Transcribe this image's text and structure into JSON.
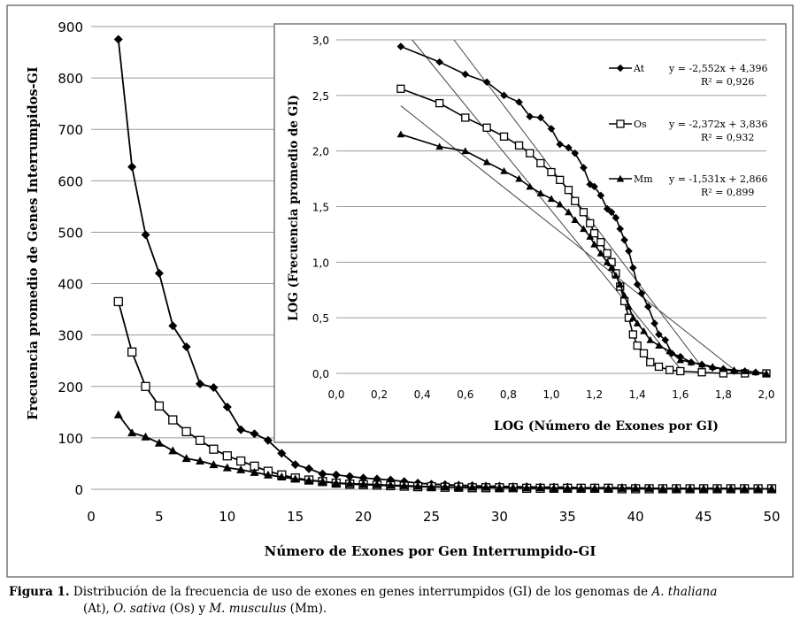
{
  "chart_data": [
    {
      "type": "line",
      "title": "",
      "xlabel": "Número de Exones por Gen Interrumpido-GI",
      "ylabel": "Frecuencia promedio de Genes Interrumpidos-GI",
      "xlim": [
        0,
        50
      ],
      "ylim": [
        0,
        900
      ],
      "xticks": [
        0,
        5,
        10,
        15,
        20,
        25,
        30,
        35,
        40,
        45,
        50
      ],
      "yticks": [
        0,
        100,
        200,
        300,
        400,
        500,
        600,
        700,
        800,
        900
      ],
      "grid": "horizontal",
      "series": [
        {
          "marker": "diamond",
          "points": [
            [
              2,
              875
            ],
            [
              3,
              627
            ],
            [
              4,
              495
            ],
            [
              5,
              420
            ],
            [
              6,
              318
            ],
            [
              7,
              277
            ],
            [
              8,
              205
            ],
            [
              9,
              198
            ],
            [
              10,
              160
            ],
            [
              11,
              116
            ],
            [
              12,
              108
            ],
            [
              13,
              95
            ],
            [
              14,
              70
            ],
            [
              15,
              48
            ],
            [
              16,
              40
            ],
            [
              17,
              30
            ],
            [
              18,
              28
            ],
            [
              19,
              25
            ],
            [
              20,
              22
            ],
            [
              21,
              20
            ],
            [
              22,
              18
            ],
            [
              23,
              15
            ],
            [
              24,
              12
            ],
            [
              25,
              10
            ],
            [
              26,
              9
            ],
            [
              27,
              8
            ],
            [
              28,
              7
            ],
            [
              29,
              6
            ],
            [
              30,
              6
            ],
            [
              31,
              5
            ],
            [
              32,
              5
            ],
            [
              33,
              4
            ],
            [
              34,
              4
            ],
            [
              35,
              4
            ],
            [
              36,
              3
            ],
            [
              37,
              3
            ],
            [
              38,
              3
            ],
            [
              39,
              3
            ],
            [
              40,
              3
            ],
            [
              41,
              2
            ],
            [
              42,
              2
            ],
            [
              43,
              2
            ],
            [
              44,
              2
            ],
            [
              45,
              2
            ],
            [
              46,
              2
            ],
            [
              47,
              2
            ],
            [
              48,
              2
            ],
            [
              49,
              1
            ],
            [
              50,
              1
            ]
          ]
        },
        {
          "marker": "square",
          "points": [
            [
              2,
              365
            ],
            [
              3,
              267
            ],
            [
              4,
              200
            ],
            [
              5,
              162
            ],
            [
              6,
              135
            ],
            [
              7,
              112
            ],
            [
              8,
              95
            ],
            [
              9,
              78
            ],
            [
              10,
              65
            ],
            [
              11,
              55
            ],
            [
              12,
              45
            ],
            [
              13,
              35
            ],
            [
              14,
              28
            ],
            [
              15,
              22
            ],
            [
              16,
              18
            ],
            [
              17,
              15
            ],
            [
              18,
              12
            ],
            [
              19,
              10
            ],
            [
              20,
              9
            ],
            [
              21,
              8
            ],
            [
              22,
              7
            ],
            [
              23,
              6
            ],
            [
              24,
              5
            ],
            [
              25,
              5
            ],
            [
              26,
              4
            ],
            [
              27,
              4
            ],
            [
              28,
              3
            ],
            [
              29,
              3
            ],
            [
              30,
              3
            ],
            [
              31,
              3
            ],
            [
              32,
              2
            ],
            [
              33,
              2
            ],
            [
              34,
              2
            ],
            [
              35,
              2
            ],
            [
              36,
              2
            ],
            [
              37,
              2
            ],
            [
              38,
              2
            ],
            [
              39,
              1
            ],
            [
              40,
              1
            ],
            [
              41,
              1
            ],
            [
              42,
              1
            ],
            [
              43,
              1
            ],
            [
              44,
              1
            ],
            [
              45,
              1
            ],
            [
              46,
              1
            ],
            [
              47,
              1
            ],
            [
              48,
              1
            ],
            [
              49,
              1
            ],
            [
              50,
              1
            ]
          ]
        },
        {
          "marker": "triangle",
          "points": [
            [
              2,
              145
            ],
            [
              3,
              110
            ],
            [
              4,
              102
            ],
            [
              5,
              90
            ],
            [
              6,
              75
            ],
            [
              7,
              60
            ],
            [
              8,
              55
            ],
            [
              9,
              48
            ],
            [
              10,
              42
            ],
            [
              11,
              38
            ],
            [
              12,
              33
            ],
            [
              13,
              28
            ],
            [
              14,
              24
            ],
            [
              15,
              20
            ],
            [
              16,
              17
            ],
            [
              17,
              15
            ],
            [
              18,
              12
            ],
            [
              19,
              11
            ],
            [
              20,
              10
            ],
            [
              21,
              9
            ],
            [
              22,
              8
            ],
            [
              23,
              7
            ],
            [
              24,
              6
            ],
            [
              25,
              5
            ],
            [
              26,
              5
            ],
            [
              27,
              4
            ],
            [
              28,
              4
            ],
            [
              29,
              4
            ],
            [
              30,
              3
            ],
            [
              31,
              3
            ],
            [
              32,
              3
            ],
            [
              33,
              3
            ],
            [
              34,
              2
            ],
            [
              35,
              2
            ],
            [
              36,
              2
            ],
            [
              37,
              2
            ],
            [
              38,
              2
            ],
            [
              39,
              2
            ],
            [
              40,
              2
            ],
            [
              41,
              2
            ],
            [
              42,
              1
            ],
            [
              43,
              1
            ],
            [
              44,
              1
            ],
            [
              45,
              1
            ],
            [
              46,
              1
            ],
            [
              47,
              1
            ],
            [
              48,
              1
            ],
            [
              49,
              1
            ],
            [
              50,
              1
            ]
          ]
        }
      ]
    },
    {
      "type": "line",
      "title": "",
      "xlabel": "LOG (Número de Exones por GI)",
      "ylabel": "LOG (Frecuencia promedio de GI)",
      "xlim": [
        0,
        2
      ],
      "ylim": [
        0,
        3
      ],
      "xtick_labels": [
        "0,0",
        "0,2",
        "0,4",
        "0,6",
        "0,8",
        "1,0",
        "1,2",
        "1,4",
        "1,6",
        "1,8",
        "2,0"
      ],
      "ytick_labels": [
        "0,0",
        "0,5",
        "1,0",
        "1,5",
        "2,0",
        "2,5",
        "3,0"
      ],
      "grid": "horizontal",
      "legend_position": "right",
      "series": [
        {
          "name": "At",
          "marker": "diamond",
          "equation": "y = -2,552x + 4,396",
          "r2": "R² = 0,926",
          "slope": -2.552,
          "intercept": 4.396,
          "points": [
            [
              0.3,
              2.94
            ],
            [
              0.48,
              2.8
            ],
            [
              0.6,
              2.69
            ],
            [
              0.7,
              2.62
            ],
            [
              0.78,
              2.5
            ],
            [
              0.85,
              2.44
            ],
            [
              0.9,
              2.31
            ],
            [
              0.95,
              2.3
            ],
            [
              1.0,
              2.2
            ],
            [
              1.04,
              2.06
            ],
            [
              1.08,
              2.03
            ],
            [
              1.11,
              1.98
            ],
            [
              1.15,
              1.85
            ],
            [
              1.18,
              1.7
            ],
            [
              1.2,
              1.68
            ],
            [
              1.23,
              1.6
            ],
            [
              1.26,
              1.48
            ],
            [
              1.28,
              1.45
            ],
            [
              1.3,
              1.4
            ],
            [
              1.32,
              1.3
            ],
            [
              1.34,
              1.2
            ],
            [
              1.36,
              1.1
            ],
            [
              1.38,
              0.95
            ],
            [
              1.4,
              0.8
            ],
            [
              1.42,
              0.72
            ],
            [
              1.45,
              0.6
            ],
            [
              1.48,
              0.45
            ],
            [
              1.5,
              0.35
            ],
            [
              1.53,
              0.3
            ],
            [
              1.56,
              0.18
            ],
            [
              1.6,
              0.15
            ],
            [
              1.65,
              0.1
            ],
            [
              1.7,
              0.08
            ],
            [
              1.75,
              0.05
            ],
            [
              1.8,
              0.04
            ],
            [
              1.85,
              0.02
            ],
            [
              1.9,
              0.02
            ],
            [
              1.95,
              0.01
            ],
            [
              2.0,
              0.0
            ]
          ]
        },
        {
          "name": "Os",
          "marker": "square",
          "equation": "y = -2,372x + 3,836",
          "r2": "R² = 0,932",
          "slope": -2.372,
          "intercept": 3.836,
          "points": [
            [
              0.3,
              2.56
            ],
            [
              0.48,
              2.43
            ],
            [
              0.6,
              2.3
            ],
            [
              0.7,
              2.21
            ],
            [
              0.78,
              2.13
            ],
            [
              0.85,
              2.05
            ],
            [
              0.9,
              1.98
            ],
            [
              0.95,
              1.89
            ],
            [
              1.0,
              1.81
            ],
            [
              1.04,
              1.74
            ],
            [
              1.08,
              1.65
            ],
            [
              1.11,
              1.55
            ],
            [
              1.15,
              1.45
            ],
            [
              1.18,
              1.35
            ],
            [
              1.2,
              1.26
            ],
            [
              1.23,
              1.18
            ],
            [
              1.26,
              1.08
            ],
            [
              1.28,
              1.0
            ],
            [
              1.3,
              0.9
            ],
            [
              1.32,
              0.78
            ],
            [
              1.34,
              0.65
            ],
            [
              1.36,
              0.5
            ],
            [
              1.38,
              0.35
            ],
            [
              1.4,
              0.25
            ],
            [
              1.43,
              0.18
            ],
            [
              1.46,
              0.1
            ],
            [
              1.5,
              0.06
            ],
            [
              1.55,
              0.03
            ],
            [
              1.6,
              0.02
            ],
            [
              1.7,
              0.01
            ],
            [
              1.8,
              0.0
            ],
            [
              1.9,
              0.0
            ],
            [
              2.0,
              0.0
            ]
          ]
        },
        {
          "name": "Mm",
          "marker": "triangle",
          "equation": "y = -1,531x + 2,866",
          "r2": "R² = 0,899",
          "slope": -1.531,
          "intercept": 2.866,
          "points": [
            [
              0.3,
              2.15
            ],
            [
              0.48,
              2.04
            ],
            [
              0.6,
              2.0
            ],
            [
              0.7,
              1.9
            ],
            [
              0.78,
              1.82
            ],
            [
              0.85,
              1.75
            ],
            [
              0.9,
              1.68
            ],
            [
              0.95,
              1.62
            ],
            [
              1.0,
              1.57
            ],
            [
              1.04,
              1.52
            ],
            [
              1.08,
              1.45
            ],
            [
              1.11,
              1.38
            ],
            [
              1.15,
              1.3
            ],
            [
              1.18,
              1.23
            ],
            [
              1.2,
              1.16
            ],
            [
              1.23,
              1.08
            ],
            [
              1.26,
              1.0
            ],
            [
              1.28,
              0.95
            ],
            [
              1.3,
              0.88
            ],
            [
              1.32,
              0.8
            ],
            [
              1.34,
              0.7
            ],
            [
              1.36,
              0.6
            ],
            [
              1.38,
              0.5
            ],
            [
              1.4,
              0.45
            ],
            [
              1.43,
              0.38
            ],
            [
              1.46,
              0.3
            ],
            [
              1.5,
              0.25
            ],
            [
              1.55,
              0.2
            ],
            [
              1.6,
              0.12
            ],
            [
              1.65,
              0.1
            ],
            [
              1.7,
              0.08
            ],
            [
              1.75,
              0.06
            ],
            [
              1.8,
              0.04
            ],
            [
              1.85,
              0.03
            ],
            [
              1.9,
              0.02
            ],
            [
              1.95,
              0.01
            ],
            [
              2.0,
              0.0
            ]
          ]
        }
      ]
    }
  ],
  "caption": {
    "label": "Figura 1.",
    "text_1": " Distribución de la frecuencia de uso de exones en genes interrumpidos (GI) de los genomas de ",
    "species_1": "A. thaliana",
    "abbr_1": " (At), ",
    "species_2": "O. sativa",
    "abbr_2": " (Os) y ",
    "species_3": "M. musculus",
    "abbr_3": " (Mm)."
  }
}
